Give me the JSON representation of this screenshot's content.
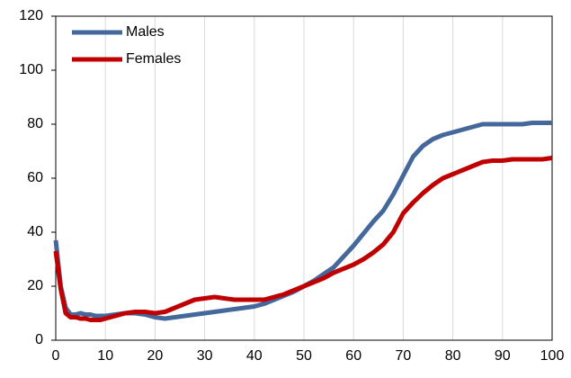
{
  "chart_data": {
    "type": "line",
    "x": [
      0,
      1,
      2,
      3,
      4,
      5,
      6,
      7,
      8,
      9,
      10,
      12,
      14,
      16,
      18,
      20,
      22,
      24,
      26,
      28,
      30,
      32,
      34,
      36,
      38,
      40,
      42,
      44,
      46,
      48,
      50,
      52,
      54,
      56,
      58,
      60,
      62,
      64,
      66,
      68,
      70,
      72,
      74,
      76,
      78,
      80,
      82,
      84,
      86,
      88,
      90,
      92,
      94,
      96,
      98,
      100
    ],
    "series": [
      {
        "name": "Males",
        "color": "#44689c",
        "values": [
          37,
          20,
          12,
          9.5,
          9.5,
          10,
          9.5,
          9.5,
          9,
          9,
          9,
          9.5,
          10,
          10,
          9.5,
          8.5,
          8,
          8.5,
          9,
          9.5,
          10,
          10.5,
          11,
          11.5,
          12,
          12.5,
          13.5,
          15,
          16.5,
          18,
          20,
          22,
          24.5,
          27,
          31,
          35,
          39.5,
          44,
          48,
          54,
          61,
          68,
          72,
          74.5,
          76,
          77,
          78,
          79,
          80,
          80,
          80,
          80,
          80,
          80.5,
          80.5,
          80.5
        ]
      },
      {
        "name": "Females",
        "color": "#c00000",
        "values": [
          33,
          19,
          10,
          8.5,
          8.5,
          8,
          8,
          7.5,
          7.5,
          7.5,
          8,
          9,
          10,
          10.5,
          10.5,
          10,
          10.5,
          12,
          13.5,
          15,
          15.5,
          16,
          15.5,
          15,
          15,
          15,
          15,
          16,
          17,
          18.5,
          20,
          21.5,
          23,
          25,
          26.5,
          28,
          30,
          32.5,
          35.5,
          40,
          47,
          51,
          54.5,
          57.5,
          60,
          61.5,
          63,
          64.5,
          66,
          66.5,
          66.5,
          67,
          67,
          67,
          67,
          67.5
        ]
      }
    ],
    "xlim": [
      0,
      100
    ],
    "xticks": [
      0,
      10,
      20,
      30,
      40,
      50,
      60,
      70,
      80,
      90,
      100
    ],
    "ylim": [
      0,
      120
    ],
    "yticks": [
      0,
      20,
      40,
      60,
      80,
      100,
      120
    ],
    "grid": true,
    "legend": "top-left"
  }
}
